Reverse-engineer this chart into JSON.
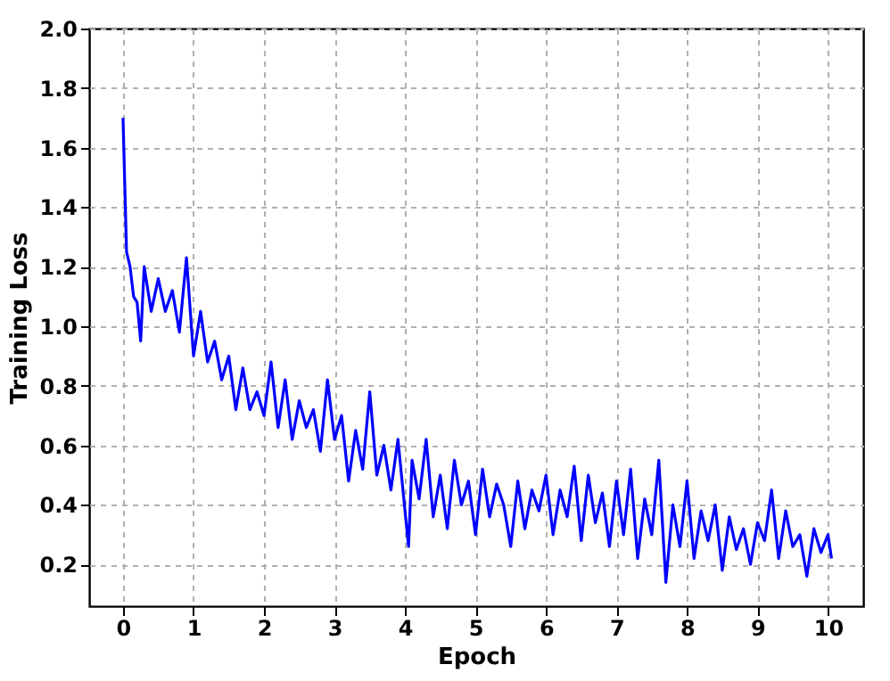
{
  "chart_data": {
    "type": "line",
    "xlabel": "Epoch",
    "ylabel": "Training Loss",
    "xlim": [
      -0.48,
      10.5
    ],
    "ylim": [
      0.06,
      2.0
    ],
    "xticks": [
      0,
      1,
      2,
      3,
      4,
      5,
      6,
      7,
      8,
      9,
      10
    ],
    "yticks": [
      {
        "value": 0.2,
        "label": "0.2"
      },
      {
        "value": 0.4,
        "label": "0.4"
      },
      {
        "value": 0.6,
        "label": "0.6"
      },
      {
        "value": 0.8,
        "label": "0.8"
      },
      {
        "value": 1.0,
        "label": "1.0"
      },
      {
        "value": 1.2,
        "label": "1.2"
      },
      {
        "value": 1.4,
        "label": "1.4"
      },
      {
        "value": 1.6,
        "label": "1.6"
      },
      {
        "value": 1.8,
        "label": "1.8"
      },
      {
        "value": 2.0,
        "label": "2.0"
      }
    ],
    "grid": true,
    "marker": "none",
    "line_style": "solid",
    "series": [
      {
        "color": "#0000ff",
        "x": [
          0,
          0.05,
          0.1,
          0.15,
          0.2,
          0.25,
          0.3,
          0.4,
          0.5,
          0.6,
          0.7,
          0.8,
          0.9,
          1.0,
          1.1,
          1.2,
          1.3,
          1.4,
          1.5,
          1.6,
          1.7,
          1.8,
          1.9,
          2.0,
          2.1,
          2.2,
          2.3,
          2.4,
          2.5,
          2.6,
          2.7,
          2.8,
          2.9,
          3.0,
          3.1,
          3.2,
          3.3,
          3.4,
          3.5,
          3.6,
          3.7,
          3.8,
          3.9,
          4.0,
          4.05,
          4.1,
          4.2,
          4.3,
          4.4,
          4.5,
          4.6,
          4.7,
          4.8,
          4.9,
          5.0,
          5.1,
          5.2,
          5.3,
          5.4,
          5.5,
          5.6,
          5.7,
          5.8,
          5.9,
          6.0,
          6.1,
          6.2,
          6.3,
          6.4,
          6.5,
          6.6,
          6.7,
          6.8,
          6.9,
          7.0,
          7.1,
          7.2,
          7.3,
          7.4,
          7.5,
          7.6,
          7.7,
          7.8,
          7.9,
          8.0,
          8.1,
          8.2,
          8.3,
          8.4,
          8.5,
          8.6,
          8.7,
          8.8,
          8.9,
          9.0,
          9.1,
          9.2,
          9.3,
          9.4,
          9.5,
          9.6,
          9.7,
          9.8,
          9.9,
          10.0,
          10.05
        ],
        "values": [
          1.7,
          1.25,
          1.2,
          1.1,
          1.08,
          0.95,
          1.2,
          1.05,
          1.16,
          1.05,
          1.12,
          0.98,
          1.23,
          0.9,
          1.05,
          0.88,
          0.95,
          0.82,
          0.9,
          0.72,
          0.86,
          0.72,
          0.78,
          0.7,
          0.88,
          0.66,
          0.82,
          0.62,
          0.75,
          0.66,
          0.72,
          0.58,
          0.82,
          0.62,
          0.7,
          0.48,
          0.65,
          0.52,
          0.78,
          0.5,
          0.6,
          0.45,
          0.62,
          0.38,
          0.26,
          0.55,
          0.42,
          0.62,
          0.36,
          0.5,
          0.32,
          0.55,
          0.4,
          0.48,
          0.3,
          0.52,
          0.36,
          0.47,
          0.4,
          0.26,
          0.48,
          0.32,
          0.45,
          0.38,
          0.5,
          0.3,
          0.45,
          0.36,
          0.53,
          0.28,
          0.5,
          0.34,
          0.44,
          0.26,
          0.48,
          0.3,
          0.52,
          0.22,
          0.42,
          0.3,
          0.55,
          0.14,
          0.4,
          0.26,
          0.48,
          0.22,
          0.38,
          0.28,
          0.4,
          0.18,
          0.36,
          0.25,
          0.32,
          0.2,
          0.34,
          0.28,
          0.45,
          0.22,
          0.38,
          0.26,
          0.3,
          0.16,
          0.32,
          0.24,
          0.3,
          0.22
        ]
      }
    ]
  }
}
